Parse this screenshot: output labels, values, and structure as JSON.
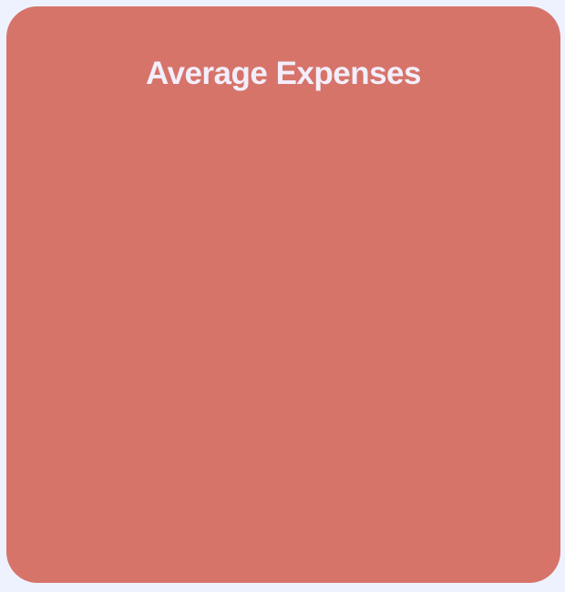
{
  "card": {
    "title": "Average Expenses",
    "background_color": "#d6746a",
    "title_color": "#f3eefb"
  },
  "page": {
    "background_color": "#eef2ff"
  }
}
